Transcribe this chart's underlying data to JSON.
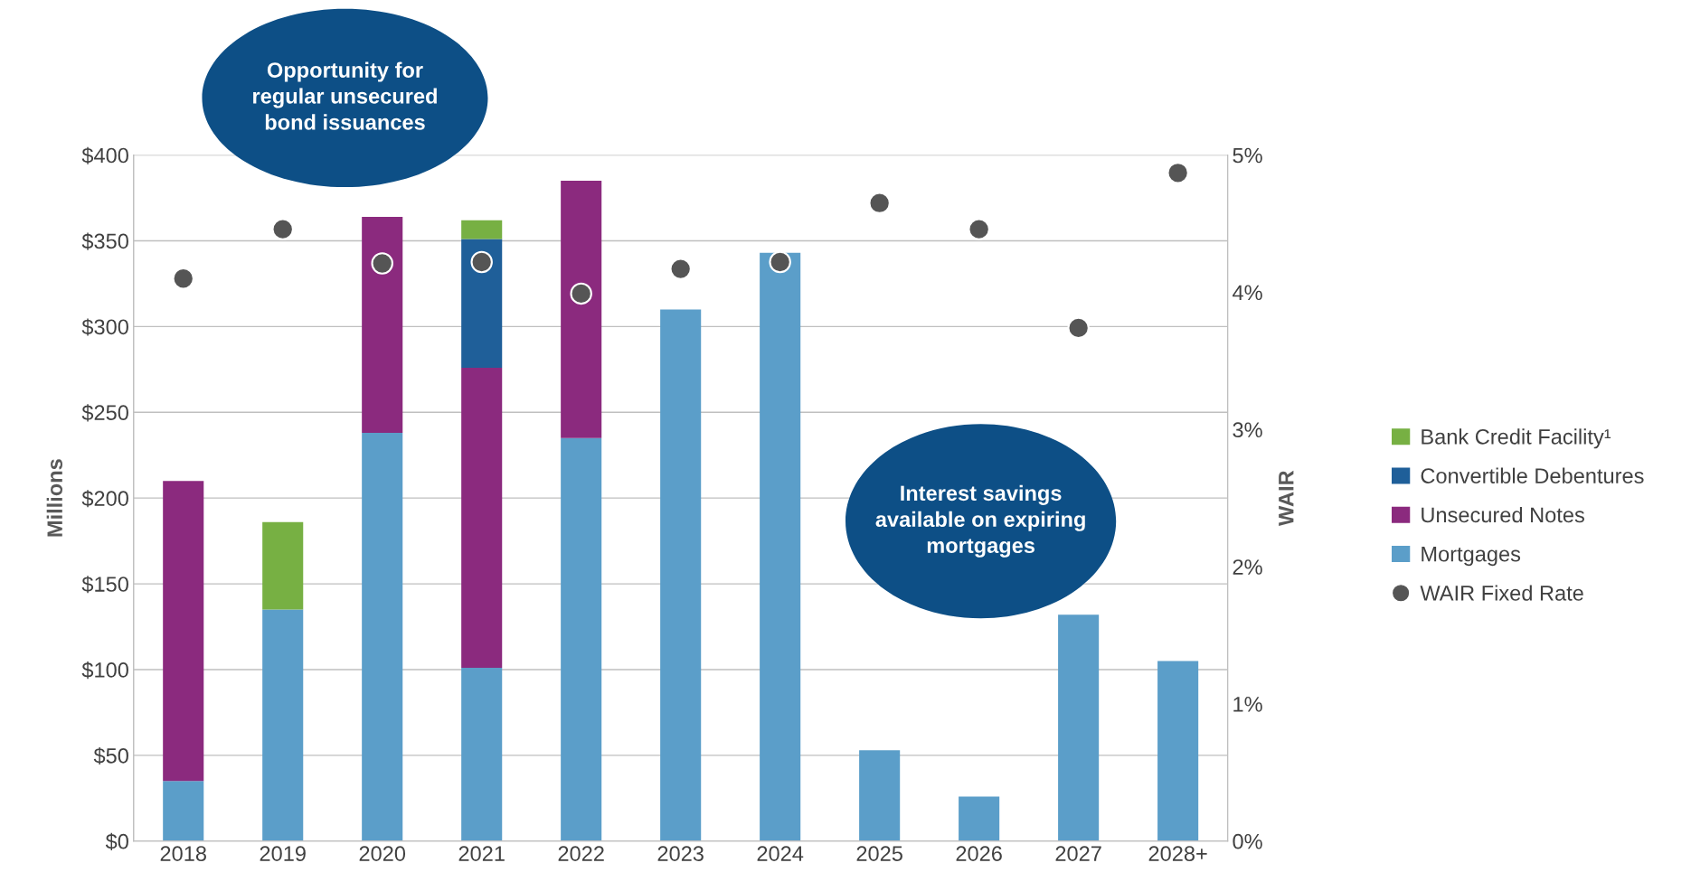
{
  "chart_data": {
    "type": "bar",
    "stacked": true,
    "categories": [
      "2018",
      "2019",
      "2020",
      "2021",
      "2022",
      "2023",
      "2024",
      "2025",
      "2026",
      "2027",
      "2028+"
    ],
    "series": [
      {
        "name": "Mortgages",
        "color": "#5b9ec9",
        "values": [
          35,
          135,
          238,
          101,
          235,
          310,
          343,
          53,
          26,
          132,
          105
        ]
      },
      {
        "name": "Unsecured Notes",
        "color": "#8b2a7e",
        "values": [
          175,
          null,
          126,
          175,
          150,
          null,
          null,
          null,
          null,
          null,
          null
        ]
      },
      {
        "name": "Convertible Debentures",
        "color": "#1f5f99",
        "values": [
          null,
          null,
          null,
          75,
          null,
          null,
          null,
          null,
          null,
          null,
          null
        ]
      },
      {
        "name": "Bank Credit Facility¹",
        "color": "#77b043",
        "values": [
          null,
          51,
          null,
          11,
          null,
          null,
          null,
          null,
          null,
          null,
          null
        ]
      },
      {
        "name": "WAIR Fixed Rate",
        "type": "scatter",
        "axis": "y2",
        "color": "#555555",
        "marker": "circle",
        "values": [
          4.1,
          4.46,
          4.21,
          4.22,
          3.99,
          4.17,
          4.22,
          4.65,
          4.46,
          3.74,
          4.87
        ]
      }
    ],
    "ylabel": "Millions",
    "y2label": "WAIR",
    "ylim": [
      0,
      400
    ],
    "yticks": [
      {
        "value": 0,
        "label": "$0"
      },
      {
        "value": 50,
        "label": "$50"
      },
      {
        "value": 100,
        "label": "$100"
      },
      {
        "value": 150,
        "label": "$150"
      },
      {
        "value": 200,
        "label": "$200"
      },
      {
        "value": 250,
        "label": "$250"
      },
      {
        "value": 300,
        "label": "$300"
      },
      {
        "value": 350,
        "label": "$350"
      },
      {
        "value": 400,
        "label": "$400"
      }
    ],
    "y2lim": [
      0,
      5
    ],
    "y2ticks": [
      {
        "value": 0,
        "label": "0%"
      },
      {
        "value": 1,
        "label": "1%"
      },
      {
        "value": 2,
        "label": "2%"
      },
      {
        "value": 3,
        "label": "3%"
      },
      {
        "value": 4,
        "label": "4%"
      },
      {
        "value": 5,
        "label": "5%"
      }
    ],
    "grid": "y",
    "legend": "right",
    "annotations": [
      "Opportunity for\nregular unsecured\nbond issuances",
      "Interest savings\navailable on expiring\nmortgages"
    ]
  }
}
